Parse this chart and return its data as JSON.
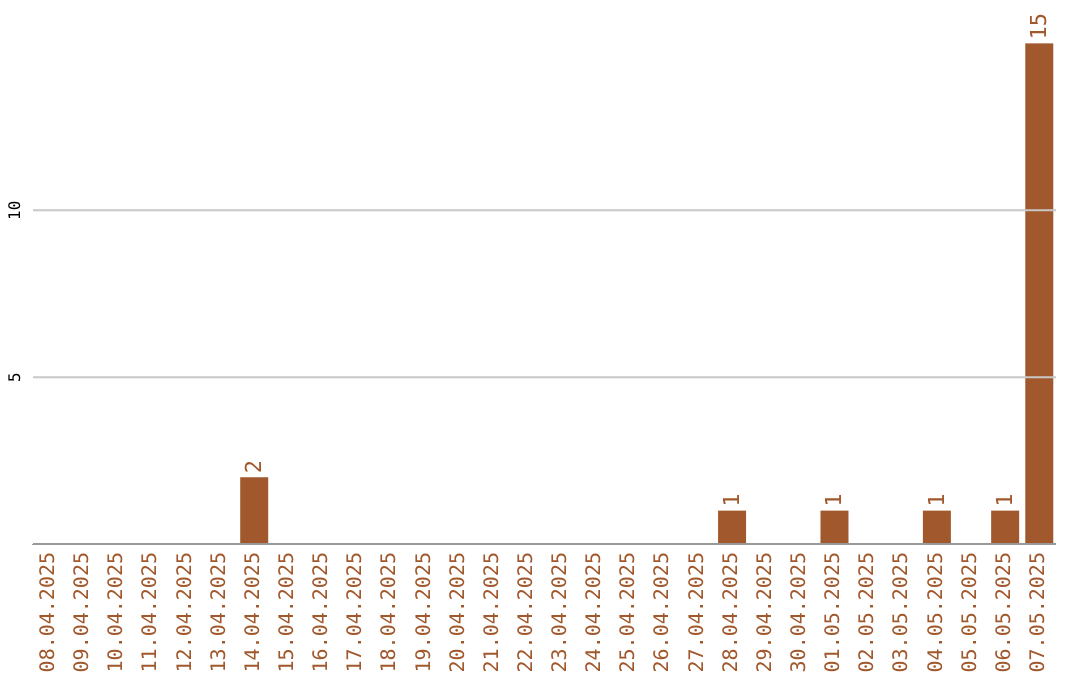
{
  "chart_data": {
    "type": "bar",
    "categories": [
      "08.04.2025",
      "09.04.2025",
      "10.04.2025",
      "11.04.2025",
      "12.04.2025",
      "13.04.2025",
      "14.04.2025",
      "15.04.2025",
      "16.04.2025",
      "17.04.2025",
      "18.04.2025",
      "19.04.2025",
      "20.04.2025",
      "21.04.2025",
      "22.04.2025",
      "23.04.2025",
      "24.04.2025",
      "25.04.2025",
      "26.04.2025",
      "27.04.2025",
      "28.04.2025",
      "29.04.2025",
      "30.04.2025",
      "01.05.2025",
      "02.05.2025",
      "03.05.2025",
      "04.05.2025",
      "05.05.2025",
      "06.05.2025",
      "07.05.2025"
    ],
    "values": [
      0,
      0,
      0,
      0,
      0,
      0,
      2,
      0,
      0,
      0,
      0,
      0,
      0,
      0,
      0,
      0,
      0,
      0,
      0,
      0,
      1,
      0,
      0,
      1,
      0,
      0,
      1,
      0,
      1,
      15
    ],
    "value_labels": [
      null,
      null,
      null,
      null,
      null,
      null,
      "2",
      null,
      null,
      null,
      null,
      null,
      null,
      null,
      null,
      null,
      null,
      null,
      null,
      null,
      "1",
      null,
      null,
      "1",
      null,
      null,
      "1",
      null,
      "1",
      "15"
    ],
    "color": "#a0582c",
    "ylim": [
      0,
      16
    ],
    "yticks": [
      5,
      10
    ],
    "grid": "y"
  }
}
